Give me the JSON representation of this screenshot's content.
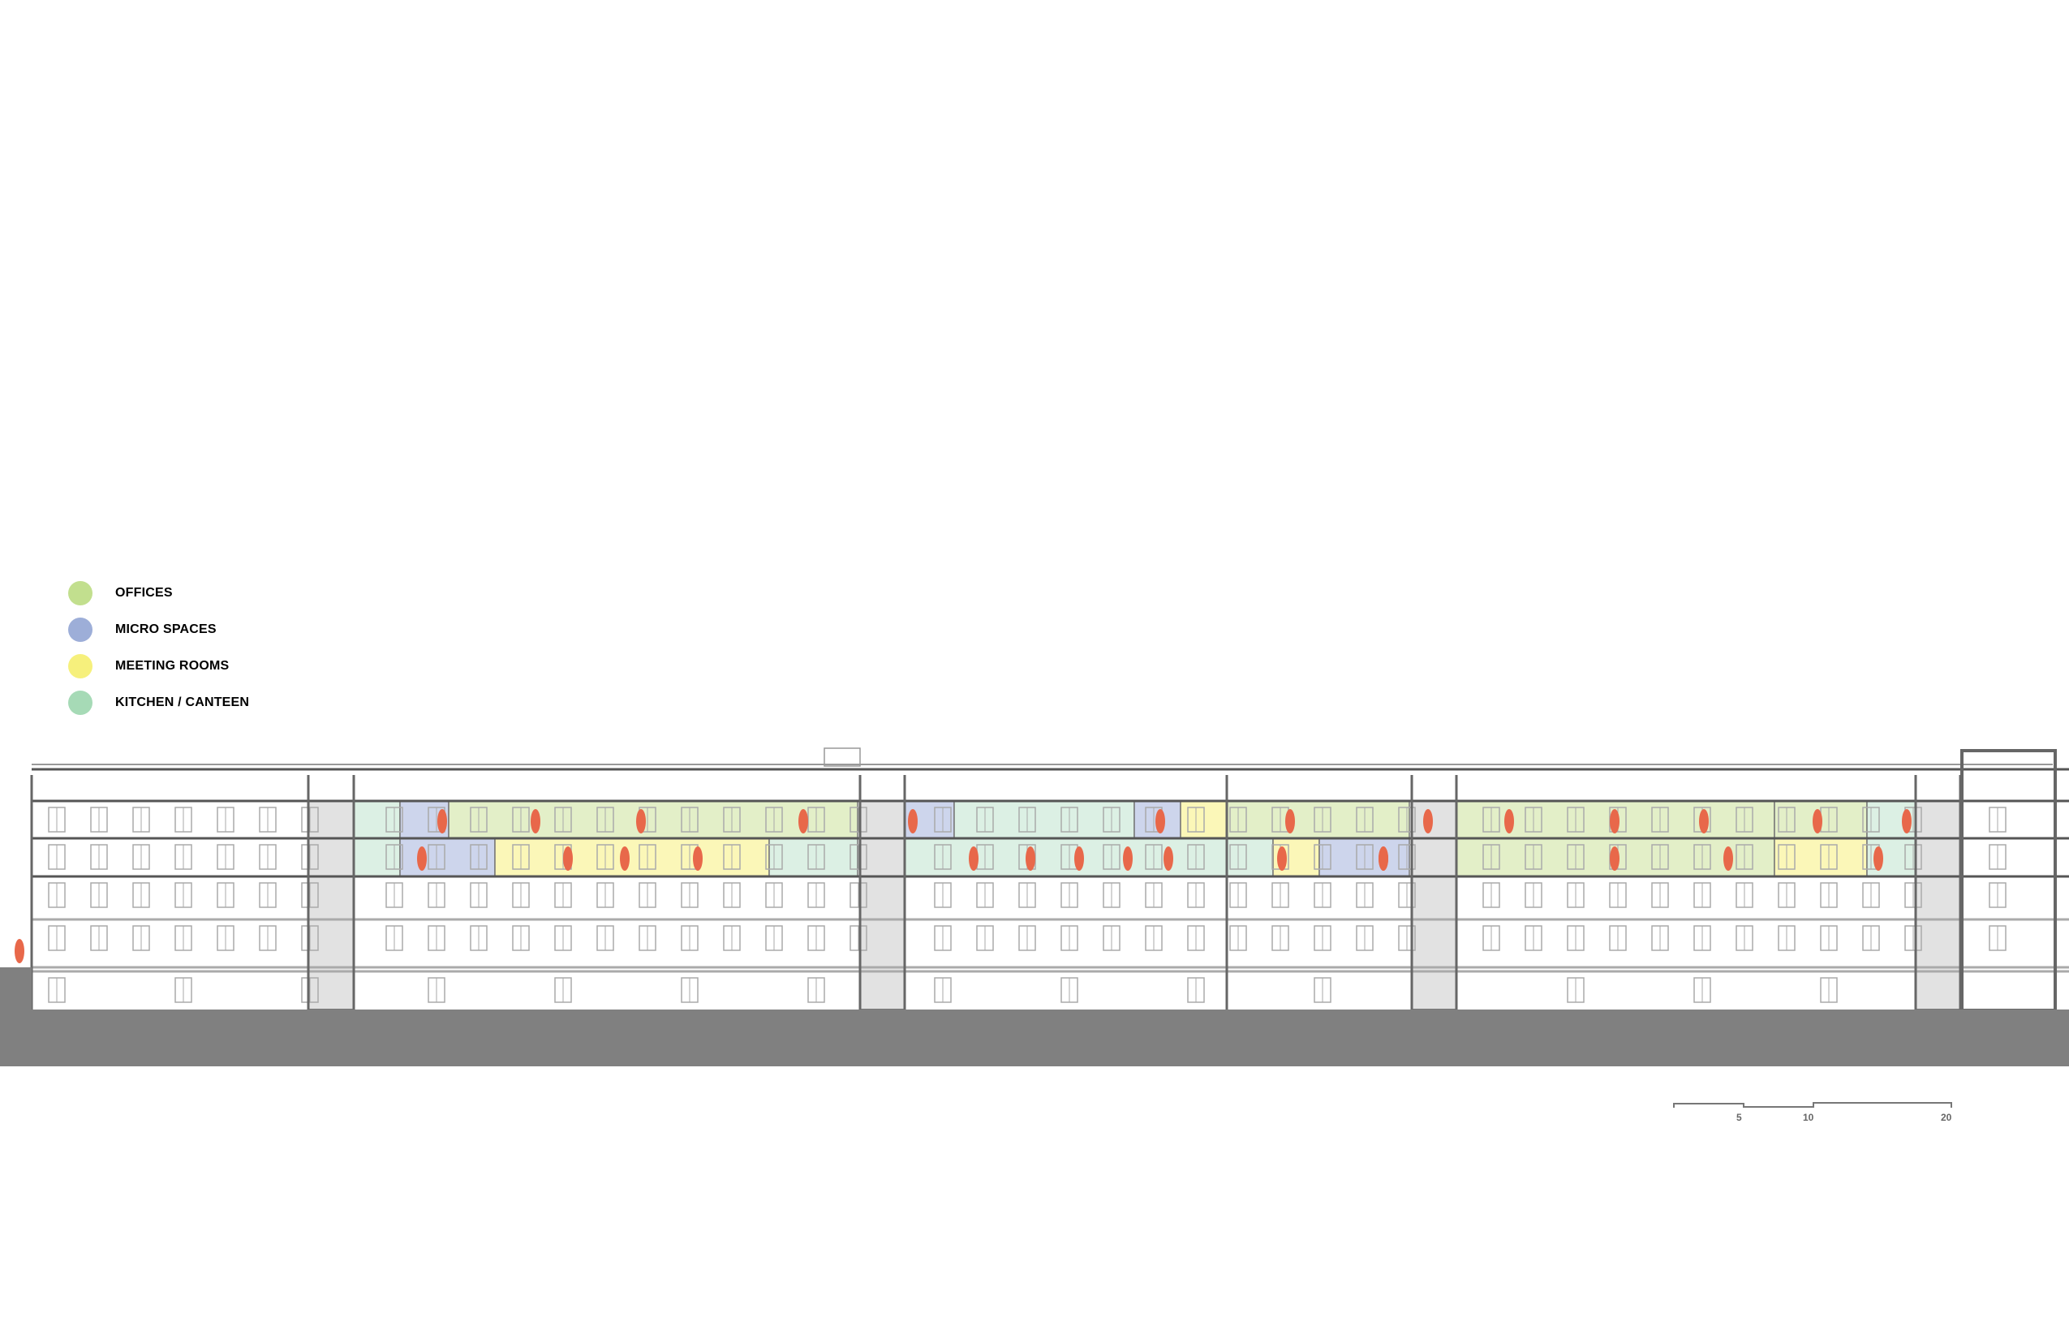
{
  "legend": [
    {
      "label": "OFFICES",
      "color": "#c2df8e"
    },
    {
      "label": "MICRO SPACES",
      "color": "#9daed8"
    },
    {
      "label": "MEETING ROOMS",
      "color": "#f6f07c"
    },
    {
      "label": "KITCHEN /  CANTEEN",
      "color": "#a6dab6"
    }
  ],
  "zone_fills": {
    "office": "#e3efc8",
    "micro": "#cdd5ec",
    "meeting": "#fbf7b8",
    "kitchen": "#dcf0e4"
  },
  "person_color": "#e8684a",
  "ground_color": "#808080",
  "scale_bar": {
    "labels": [
      "5",
      "10",
      "20"
    ]
  }
}
